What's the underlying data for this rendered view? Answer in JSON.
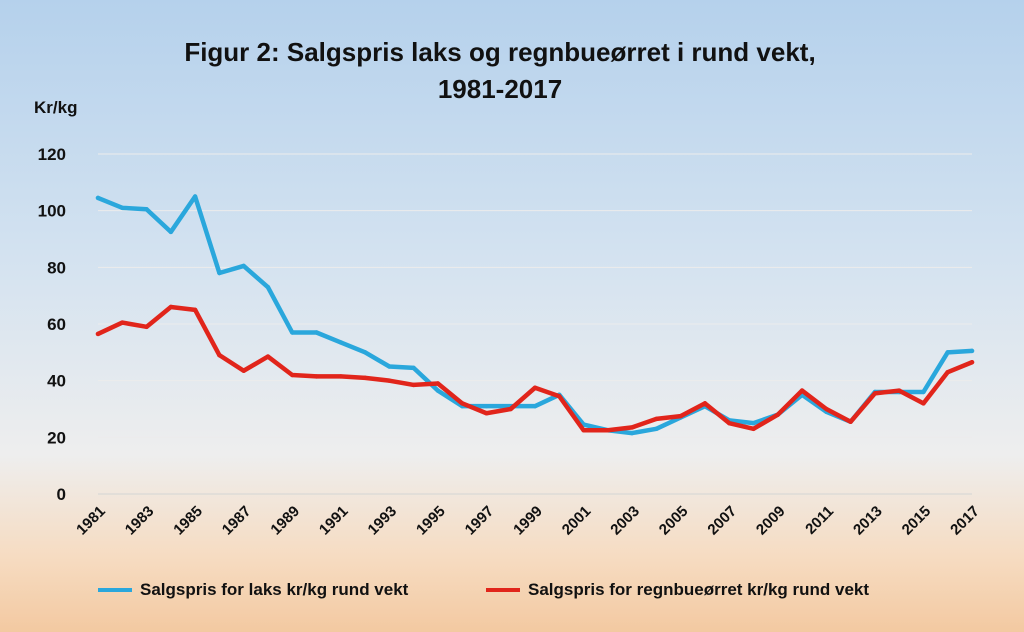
{
  "chart_data": {
    "type": "line",
    "title_line1": "Figur 2: Salgspris laks og regnbueørret i rund vekt,",
    "title_line2": "1981-2017",
    "ylabel": "Kr/kg",
    "xlabel": "",
    "ylim": [
      0,
      120
    ],
    "yticks": [
      0,
      20,
      40,
      60,
      80,
      100,
      120
    ],
    "x": [
      1981,
      1982,
      1983,
      1984,
      1985,
      1986,
      1987,
      1988,
      1989,
      1990,
      1991,
      1992,
      1993,
      1994,
      1995,
      1996,
      1997,
      1998,
      1999,
      2000,
      2001,
      2002,
      2003,
      2004,
      2005,
      2006,
      2007,
      2008,
      2009,
      2010,
      2011,
      2012,
      2013,
      2014,
      2015,
      2016,
      2017
    ],
    "xtick_labels": [
      "1981",
      "1983",
      "1985",
      "1987",
      "1989",
      "1991",
      "1993",
      "1995",
      "1997",
      "1999",
      "2001",
      "2003",
      "2005",
      "2007",
      "2009",
      "2011",
      "2013",
      "2015",
      "2017"
    ],
    "grid": true,
    "legend_position": "bottom",
    "series": [
      {
        "name": "Salgspris for laks kr/kg rund vekt",
        "color": "#2aa7dc",
        "values": [
          104.5,
          101,
          100.5,
          92.5,
          105,
          78,
          80.5,
          73,
          57,
          57,
          53.5,
          50,
          45,
          44.5,
          36.5,
          31,
          31,
          31,
          31,
          35,
          24.5,
          22.5,
          21.5,
          23,
          27,
          31,
          26,
          25,
          28,
          35,
          29,
          25.5,
          36,
          36,
          36,
          50,
          50.5
        ]
      },
      {
        "name": "Salgspris for regnbueørret kr/kg rund vekt",
        "color": "#e1251b",
        "values": [
          56.5,
          60.5,
          59,
          66,
          65,
          49,
          43.5,
          48.5,
          42,
          41.5,
          41.5,
          41,
          40,
          38.5,
          39,
          32,
          28.5,
          30,
          37.5,
          34.5,
          22.5,
          22.5,
          23.5,
          26.5,
          27.5,
          32,
          25,
          23,
          28,
          36.5,
          30,
          25.5,
          35.5,
          36.5,
          32,
          43,
          46.5
        ]
      }
    ]
  }
}
